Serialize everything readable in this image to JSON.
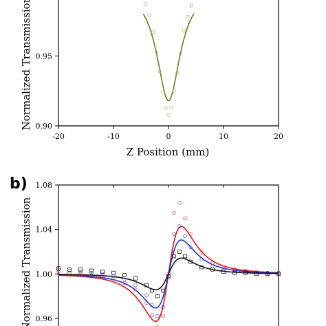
{
  "chart_data": [
    {
      "type": "line",
      "panel_label": "",
      "xlabel": "Z Position (mm)",
      "ylabel": "Normalized Transmission",
      "xlim": [
        -20,
        20
      ],
      "ylim": [
        0.9,
        0.99
      ],
      "x_ticks": [
        -20,
        -10,
        0,
        10,
        20
      ],
      "x_tick_labels": [
        "-20",
        "-10",
        "0",
        "10",
        "20"
      ],
      "y_ticks": [
        0.9,
        0.95
      ],
      "y_tick_labels": [
        "0.90",
        "0.95"
      ],
      "series": [
        {
          "color": "#6b7a1e",
          "marker": "circle",
          "fit": {
            "depth": 0.082,
            "z0": 2.6
          },
          "x": [
            -4.2,
            -3.5,
            -2.8,
            -2.2,
            -1.6,
            -1.0,
            -0.5,
            0.0,
            0.5,
            1.0,
            1.6,
            2.2,
            2.8,
            3.5,
            4.2
          ],
          "y": [
            0.987,
            0.979,
            0.967,
            0.953,
            0.939,
            0.924,
            0.913,
            0.908,
            0.913,
            0.925,
            0.938,
            0.952,
            0.968,
            0.978,
            0.986
          ]
        }
      ]
    },
    {
      "type": "line",
      "panel_label": "b)",
      "xlabel": "",
      "ylabel": "Normalized Transmission",
      "xlim": [
        -20,
        20
      ],
      "ylim": [
        0.95,
        1.08
      ],
      "y_ticks": [
        0.96,
        1.0,
        1.04,
        1.08
      ],
      "y_tick_labels": [
        "0.96",
        "1.00",
        "1.04",
        "1.08"
      ],
      "x_ticks": [
        -20,
        -10,
        0,
        10,
        20
      ],
      "series": [
        {
          "color": "#e0141e",
          "marker": "circle",
          "fit": {
            "amplitude": 0.06,
            "z0": 3.2,
            "offset": 1.0
          },
          "x": [
            -20,
            -18,
            -16,
            -14,
            -12,
            -10,
            -8,
            -6,
            -4,
            -3,
            -2,
            -1,
            0,
            1,
            2,
            3,
            4,
            6,
            8,
            10,
            12,
            14,
            16,
            18,
            20
          ],
          "y": [
            1.002,
            1.001,
            1.0,
            0.999,
            0.998,
            0.996,
            0.992,
            0.986,
            0.974,
            0.963,
            0.952,
            0.962,
            1.0,
            1.055,
            1.064,
            1.05,
            1.036,
            1.019,
            1.01,
            1.006,
            1.004,
            1.003,
            1.002,
            1.001,
            1.001
          ]
        },
        {
          "color": "#1f33d6",
          "marker": "circle",
          "fit": {
            "amplitude": 0.043,
            "z0": 3.2,
            "offset": 1.0
          },
          "x": [
            -20,
            -18,
            -16,
            -14,
            -12,
            -10,
            -8,
            -6,
            -4,
            -3,
            -2,
            -1,
            0,
            1,
            2,
            3,
            4,
            6,
            8,
            10,
            12,
            14,
            16,
            18,
            20
          ],
          "y": [
            1.004,
            1.003,
            1.002,
            1.001,
            1.0,
            0.998,
            0.995,
            0.99,
            0.981,
            0.972,
            0.962,
            0.97,
            0.998,
            1.036,
            1.043,
            1.034,
            1.024,
            1.013,
            1.007,
            1.004,
            1.003,
            1.002,
            1.001,
            1.001,
            1.001
          ]
        },
        {
          "color": "#111111",
          "marker": "square",
          "fit": {
            "amplitude": 0.02,
            "z0": 3.2,
            "offset": 1.0
          },
          "x": [
            -20,
            -18,
            -16,
            -14,
            -12,
            -10,
            -8,
            -6,
            -4,
            -3,
            -2,
            -1,
            0,
            1,
            2,
            3,
            4,
            6,
            8,
            10,
            12,
            14,
            16,
            18,
            20
          ],
          "y": [
            1.005,
            1.004,
            1.004,
            1.003,
            1.002,
            1.001,
            0.999,
            0.996,
            0.99,
            0.985,
            0.98,
            0.985,
            0.998,
            1.016,
            1.02,
            1.016,
            1.011,
            1.006,
            1.004,
            1.002,
            1.001,
            1.001,
            1.0,
            1.0,
            1.0
          ]
        }
      ]
    }
  ]
}
